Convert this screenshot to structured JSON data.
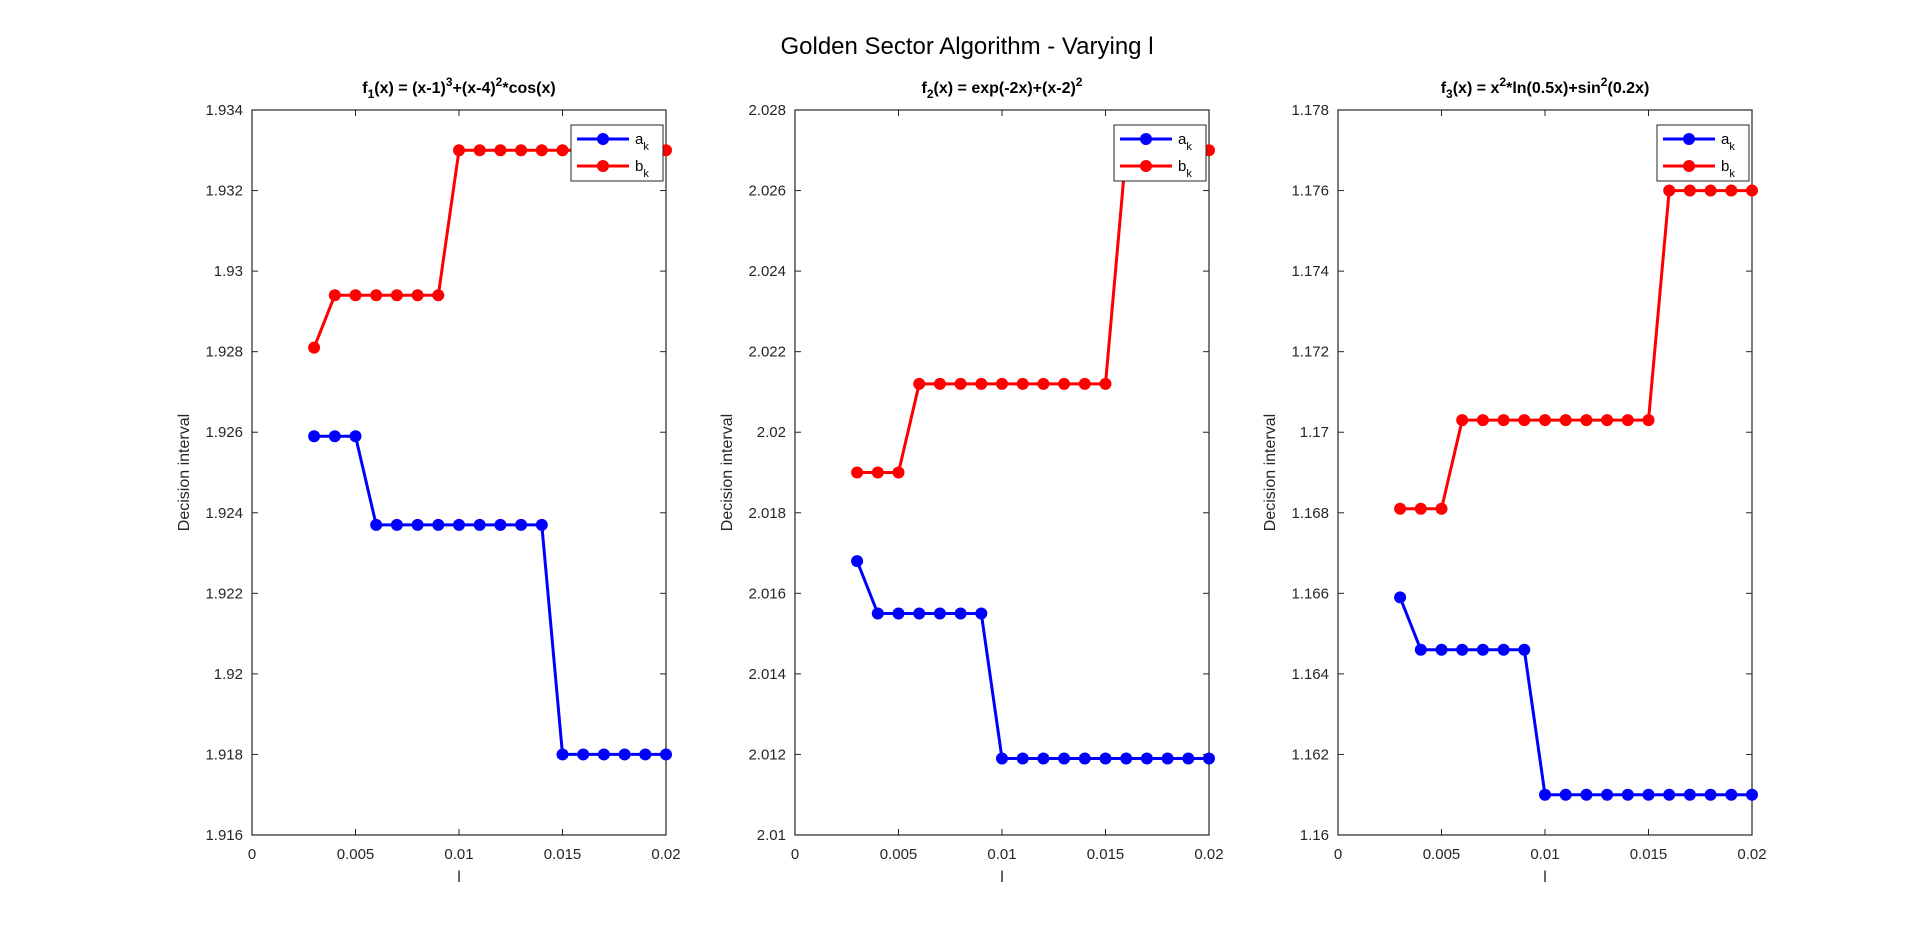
{
  "figure_title": "Golden Sector Algorithm - Varying l",
  "chart_data": [
    {
      "type": "line",
      "title": {
        "base": "f",
        "sub": "1",
        "rest": "(x) = (x-1)",
        "sup1": "3",
        "rest2": "+(x-4)",
        "sup2": "2",
        "rest3": "*cos(x)"
      },
      "xlabel": "l",
      "ylabel": "Decision interval",
      "xlim": [
        0,
        0.02
      ],
      "ylim": [
        1.916,
        1.934
      ],
      "xticks": [
        0,
        0.005,
        0.01,
        0.015,
        0.02
      ],
      "xtick_labels": [
        "0",
        "0.005",
        "0.01",
        "0.015",
        "0.02"
      ],
      "yticks": [
        1.916,
        1.918,
        1.92,
        1.922,
        1.924,
        1.926,
        1.928,
        1.93,
        1.932,
        1.934
      ],
      "ytick_labels": [
        "1.916",
        "1.918",
        "1.92",
        "1.922",
        "1.924",
        "1.926",
        "1.928",
        "1.93",
        "1.932",
        "1.934"
      ],
      "grid": false,
      "legend": "top-right",
      "x": [
        0.003,
        0.004,
        0.005,
        0.006,
        0.007,
        0.008,
        0.009,
        0.01,
        0.011,
        0.012,
        0.013,
        0.014,
        0.015,
        0.016,
        0.017,
        0.018,
        0.019,
        0.02
      ],
      "series": [
        {
          "name": "a",
          "name_sub": "k",
          "color": "#0000ff",
          "values": [
            1.9259,
            1.9259,
            1.9259,
            1.9237,
            1.9237,
            1.9237,
            1.9237,
            1.9237,
            1.9237,
            1.9237,
            1.9237,
            1.9237,
            1.918,
            1.918,
            1.918,
            1.918,
            1.918,
            1.918
          ]
        },
        {
          "name": "b",
          "name_sub": "k",
          "color": "#ff0000",
          "values": [
            1.9281,
            1.9294,
            1.9294,
            1.9294,
            1.9294,
            1.9294,
            1.9294,
            1.933,
            1.933,
            1.933,
            1.933,
            1.933,
            1.933,
            1.933,
            1.933,
            1.933,
            1.933,
            1.933
          ]
        }
      ]
    },
    {
      "type": "line",
      "title": {
        "base": "f",
        "sub": "2",
        "rest": "(x) = exp(-2x)+(x-2)",
        "sup1": "2",
        "rest2": "",
        "sup2": "",
        "rest3": ""
      },
      "xlabel": "l",
      "ylabel": "Decision interval",
      "xlim": [
        0,
        0.02
      ],
      "ylim": [
        2.01,
        2.028
      ],
      "xticks": [
        0,
        0.005,
        0.01,
        0.015,
        0.02
      ],
      "xtick_labels": [
        "0",
        "0.005",
        "0.01",
        "0.015",
        "0.02"
      ],
      "yticks": [
        2.01,
        2.012,
        2.014,
        2.016,
        2.018,
        2.02,
        2.022,
        2.024,
        2.026,
        2.028
      ],
      "ytick_labels": [
        "2.01",
        "2.012",
        "2.014",
        "2.016",
        "2.018",
        "2.02",
        "2.022",
        "2.024",
        "2.026",
        "2.028"
      ],
      "grid": false,
      "legend": "top-right",
      "x": [
        0.003,
        0.004,
        0.005,
        0.006,
        0.007,
        0.008,
        0.009,
        0.01,
        0.011,
        0.012,
        0.013,
        0.014,
        0.015,
        0.016,
        0.017,
        0.018,
        0.019,
        0.02
      ],
      "series": [
        {
          "name": "a",
          "name_sub": "k",
          "color": "#0000ff",
          "values": [
            2.0168,
            2.0155,
            2.0155,
            2.0155,
            2.0155,
            2.0155,
            2.0155,
            2.0119,
            2.0119,
            2.0119,
            2.0119,
            2.0119,
            2.0119,
            2.0119,
            2.0119,
            2.0119,
            2.0119,
            2.0119
          ]
        },
        {
          "name": "b",
          "name_sub": "k",
          "color": "#ff0000",
          "values": [
            2.019,
            2.019,
            2.019,
            2.0212,
            2.0212,
            2.0212,
            2.0212,
            2.0212,
            2.0212,
            2.0212,
            2.0212,
            2.0212,
            2.0212,
            2.027,
            2.027,
            2.027,
            2.027,
            2.027
          ]
        }
      ]
    },
    {
      "type": "line",
      "title": {
        "base": "f",
        "sub": "3",
        "rest": "(x) = x",
        "sup1": "2",
        "rest2": "*ln(0.5x)+sin",
        "sup2": "2",
        "rest3": "(0.2x)"
      },
      "xlabel": "l",
      "ylabel": "Decision interval",
      "xlim": [
        0,
        0.02
      ],
      "ylim": [
        1.16,
        1.178
      ],
      "xticks": [
        0,
        0.005,
        0.01,
        0.015,
        0.02
      ],
      "xtick_labels": [
        "0",
        "0.005",
        "0.01",
        "0.015",
        "0.02"
      ],
      "yticks": [
        1.16,
        1.162,
        1.164,
        1.166,
        1.168,
        1.17,
        1.172,
        1.174,
        1.176,
        1.178
      ],
      "ytick_labels": [
        "1.16",
        "1.162",
        "1.164",
        "1.166",
        "1.168",
        "1.17",
        "1.172",
        "1.174",
        "1.176",
        "1.178"
      ],
      "grid": false,
      "legend": "top-right",
      "x": [
        0.003,
        0.004,
        0.005,
        0.006,
        0.007,
        0.008,
        0.009,
        0.01,
        0.011,
        0.012,
        0.013,
        0.014,
        0.015,
        0.016,
        0.017,
        0.018,
        0.019,
        0.02
      ],
      "series": [
        {
          "name": "a",
          "name_sub": "k",
          "color": "#0000ff",
          "values": [
            1.1659,
            1.1646,
            1.1646,
            1.1646,
            1.1646,
            1.1646,
            1.1646,
            1.161,
            1.161,
            1.161,
            1.161,
            1.161,
            1.161,
            1.161,
            1.161,
            1.161,
            1.161,
            1.161
          ]
        },
        {
          "name": "b",
          "name_sub": "k",
          "color": "#ff0000",
          "values": [
            1.1681,
            1.1681,
            1.1681,
            1.1703,
            1.1703,
            1.1703,
            1.1703,
            1.1703,
            1.1703,
            1.1703,
            1.1703,
            1.1703,
            1.1703,
            1.176,
            1.176,
            1.176,
            1.176,
            1.176
          ]
        }
      ]
    }
  ]
}
